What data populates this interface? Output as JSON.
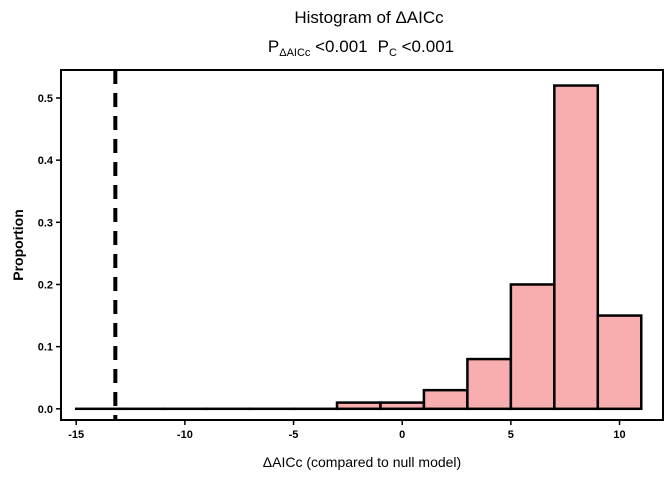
{
  "chart_data": {
    "type": "bar",
    "title": "Histogram of ΔAICc",
    "subtitle": {
      "p_label": "P",
      "p_sub": "ΔAICc",
      "p_value": " <0.001",
      "c_label": "P",
      "c_sub": "C",
      "c_value": " <0.001"
    },
    "xlabel": "ΔAICc (compared to null model)",
    "ylabel": "Proportion",
    "xlim": [
      -15.7,
      12.0
    ],
    "ylim": [
      -0.018,
      0.545
    ],
    "x_ticks": [
      -15,
      -10,
      -5,
      0,
      5,
      10
    ],
    "y_ticks": [
      0.0,
      0.1,
      0.2,
      0.3,
      0.4,
      0.5
    ],
    "y_tick_labels": [
      "0.0",
      "0.1",
      "0.2",
      "0.3",
      "0.4",
      "0.5"
    ],
    "bin_edges": [
      -15,
      -13,
      -11,
      -9,
      -7,
      -5,
      -3,
      -1,
      1,
      3,
      5,
      7,
      9,
      11
    ],
    "values": [
      0.0,
      0.0,
      0.0,
      0.0,
      0.0,
      0.0,
      0.01,
      0.01,
      0.03,
      0.08,
      0.2,
      0.52,
      0.15
    ],
    "reference_line_x": -13.2,
    "bar_fill": "#f8aeae",
    "bar_stroke": "#000000",
    "grid": false
  }
}
